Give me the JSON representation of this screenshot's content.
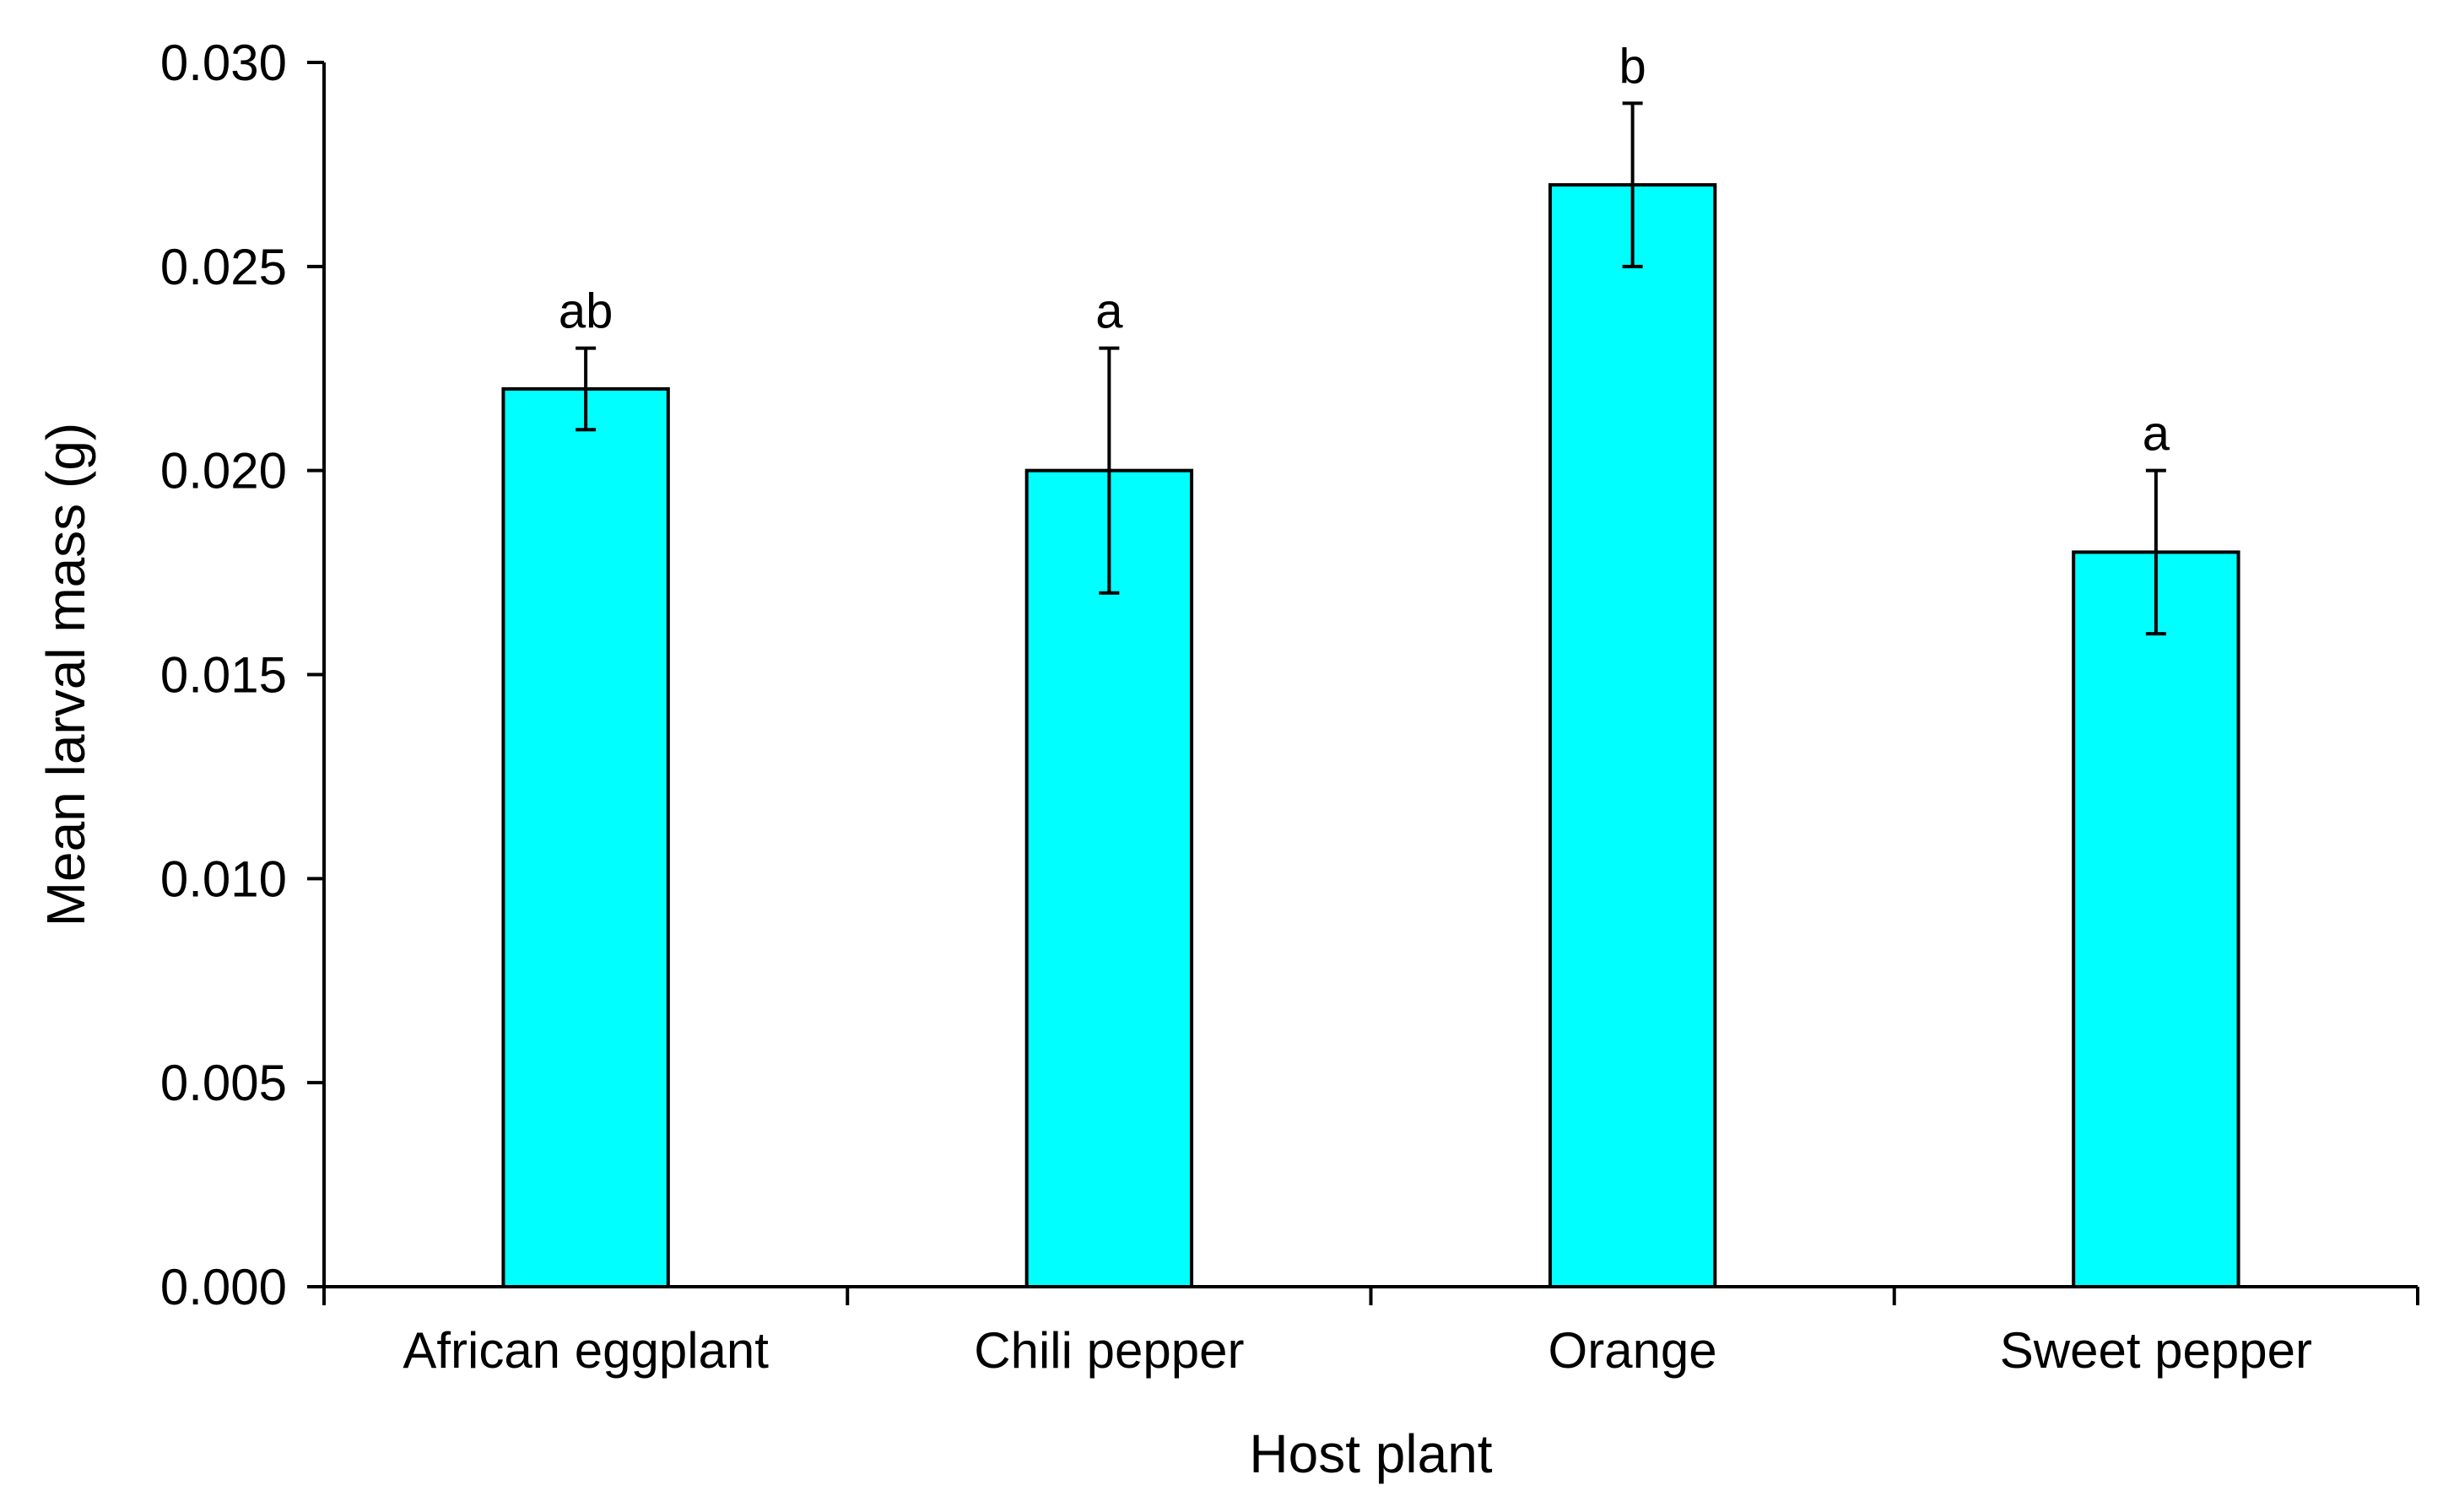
{
  "chart_data": {
    "type": "bar",
    "title": "",
    "xlabel": "Host plant",
    "ylabel": "Mean larval mass (g)",
    "categories": [
      "African eggplant",
      "Chili pepper",
      "Orange",
      "Sweet pepper"
    ],
    "values": [
      0.022,
      0.02,
      0.027,
      0.018
    ],
    "error_upper": [
      0.023,
      0.023,
      0.029,
      0.02
    ],
    "error_lower": [
      0.021,
      0.017,
      0.025,
      0.016
    ],
    "significance_letters": [
      "ab",
      "a",
      "b",
      "a"
    ],
    "ylim": [
      0,
      0.03
    ],
    "yticks": [
      0.0,
      0.005,
      0.01,
      0.015,
      0.02,
      0.025,
      0.03
    ],
    "ytick_labels": [
      "0.000",
      "0.005",
      "0.010",
      "0.015",
      "0.020",
      "0.025",
      "0.030"
    ],
    "grid": false,
    "legend": "none",
    "bar_color": "#00FFFF",
    "edge_color": "#000000"
  }
}
